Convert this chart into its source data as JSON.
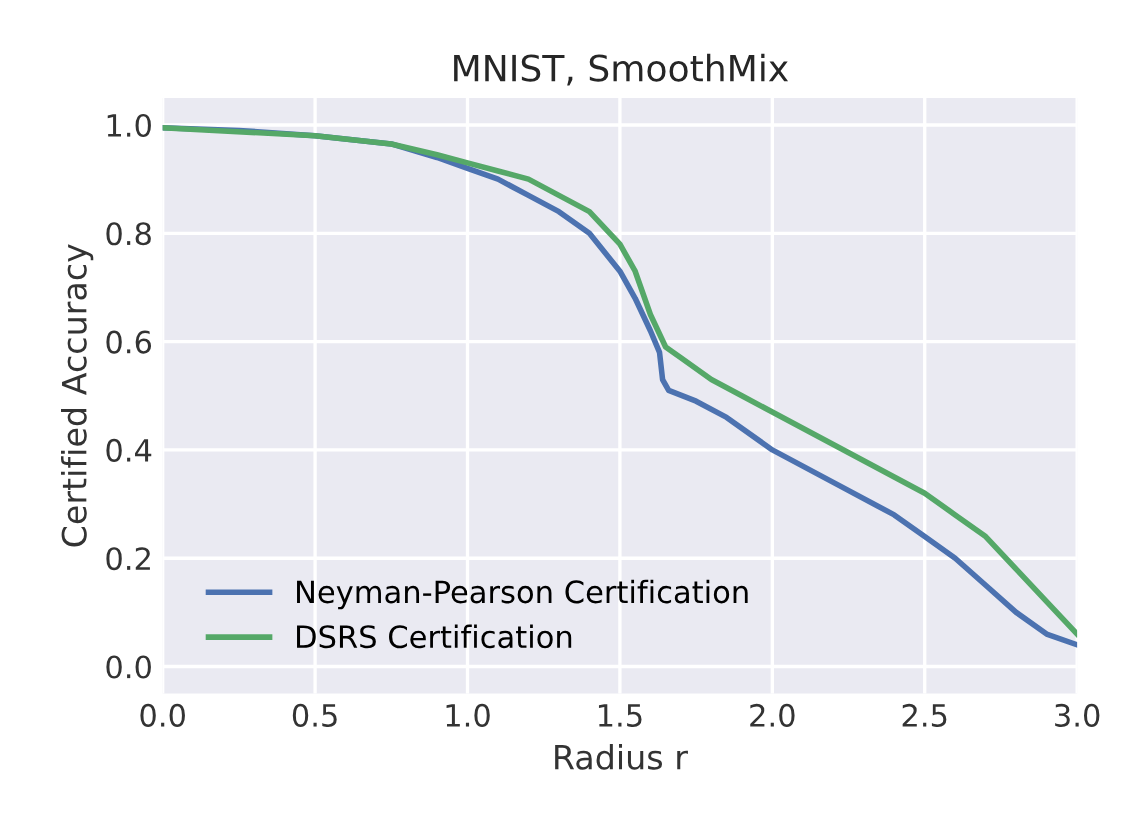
{
  "chart_data": {
    "type": "line",
    "title": "MNIST, SmoothMix",
    "xlabel": "Radius r",
    "ylabel": "Certified Accuracy",
    "xlim": [
      0,
      3
    ],
    "xticks": [
      {
        "value": 0,
        "label": "0.0"
      },
      {
        "value": 0.5,
        "label": "0.5"
      },
      {
        "value": 1,
        "label": "1.0"
      },
      {
        "value": 1.5,
        "label": "1.5"
      },
      {
        "value": 2,
        "label": "2.0"
      },
      {
        "value": 2.5,
        "label": "2.5"
      },
      {
        "value": 3,
        "label": "3.0"
      }
    ],
    "ylim": [
      -0.05,
      1.05
    ],
    "yticks": [
      {
        "value": 0,
        "label": "0.0"
      },
      0.2,
      0.4,
      0.6,
      0.8,
      {
        "value": 1,
        "label": "1.0"
      }
    ],
    "grid": true,
    "legend": "bottom left",
    "marker": "none",
    "line_style": "solid",
    "series": [
      {
        "name": "Neyman-Pearson Certification",
        "color": "#4c72b0",
        "x": [
          0,
          0.25,
          0.5,
          0.75,
          0.9,
          1.0,
          1.1,
          1.2,
          1.3,
          1.4,
          1.5,
          1.55,
          1.6,
          1.63,
          1.64,
          1.66,
          1.75,
          1.85,
          2.0,
          2.2,
          2.4,
          2.5,
          2.6,
          2.7,
          2.8,
          2.9,
          3.0
        ],
        "values": [
          0.995,
          0.99,
          0.98,
          0.965,
          0.94,
          0.92,
          0.9,
          0.87,
          0.84,
          0.8,
          0.73,
          0.68,
          0.62,
          0.58,
          0.53,
          0.51,
          0.49,
          0.46,
          0.4,
          0.34,
          0.28,
          0.24,
          0.2,
          0.15,
          0.1,
          0.06,
          0.04
        ]
      },
      {
        "name": "DSRS Certification",
        "color": "#55a868",
        "x": [
          0,
          0.5,
          0.75,
          0.9,
          1.0,
          1.1,
          1.2,
          1.3,
          1.4,
          1.5,
          1.55,
          1.6,
          1.65,
          1.7,
          1.8,
          1.9,
          2.0,
          2.2,
          2.4,
          2.5,
          2.6,
          2.7,
          2.8,
          2.9,
          3.0
        ],
        "values": [
          0.995,
          0.98,
          0.965,
          0.945,
          0.93,
          0.915,
          0.9,
          0.87,
          0.84,
          0.78,
          0.73,
          0.65,
          0.59,
          0.57,
          0.53,
          0.5,
          0.47,
          0.41,
          0.35,
          0.32,
          0.28,
          0.24,
          0.18,
          0.12,
          0.06
        ]
      }
    ]
  }
}
